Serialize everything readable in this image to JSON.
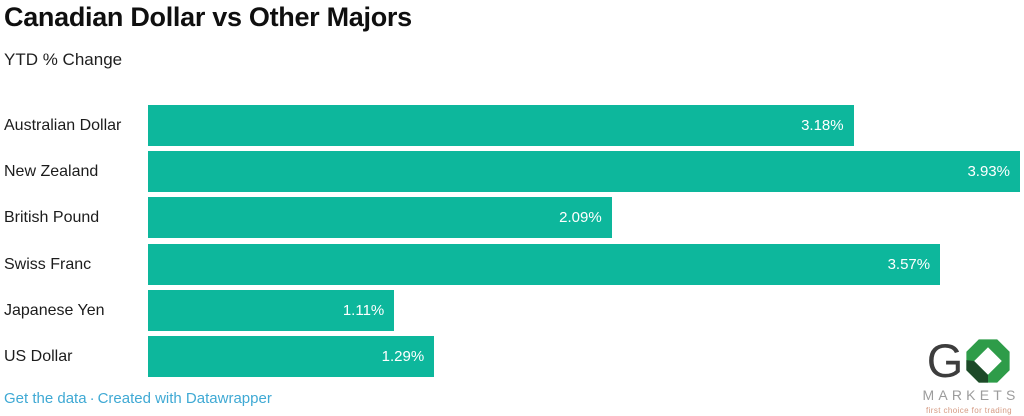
{
  "header": {
    "title": "Canadian Dollar vs Other Majors",
    "subtitle": "YTD % Change"
  },
  "chart_data": {
    "type": "bar",
    "orientation": "horizontal",
    "title": "Canadian Dollar vs Other Majors",
    "subtitle": "YTD % Change",
    "categories": [
      "Australian Dollar",
      "New Zealand",
      "British Pound",
      "Swiss Franc",
      "Japanese Yen",
      "US Dollar"
    ],
    "values": [
      3.18,
      3.93,
      2.09,
      3.57,
      1.11,
      1.29
    ],
    "value_labels": [
      "3.18%",
      "3.93%",
      "2.09%",
      "3.57%",
      "1.11%",
      "1.29%"
    ],
    "xlim": [
      0,
      3.93
    ],
    "unit": "%",
    "grid": false,
    "legend": false,
    "bar_color": "#0db79c",
    "value_label_color": "#ffffff"
  },
  "footer": {
    "get_data_label": "Get the data",
    "separator": "·",
    "credit_label": "Created with Datawrapper",
    "link_color": "#3fa9d4"
  },
  "logo": {
    "brand_g": "G",
    "brand_name": "MARKETS",
    "tagline": "first choice for trading",
    "octagon_green": "#2e9c49",
    "octagon_dark": "#1d4a28",
    "g_color": "#3d3d3d",
    "markets_color": "#9c9c9c",
    "tagline_color": "#d59a82"
  }
}
